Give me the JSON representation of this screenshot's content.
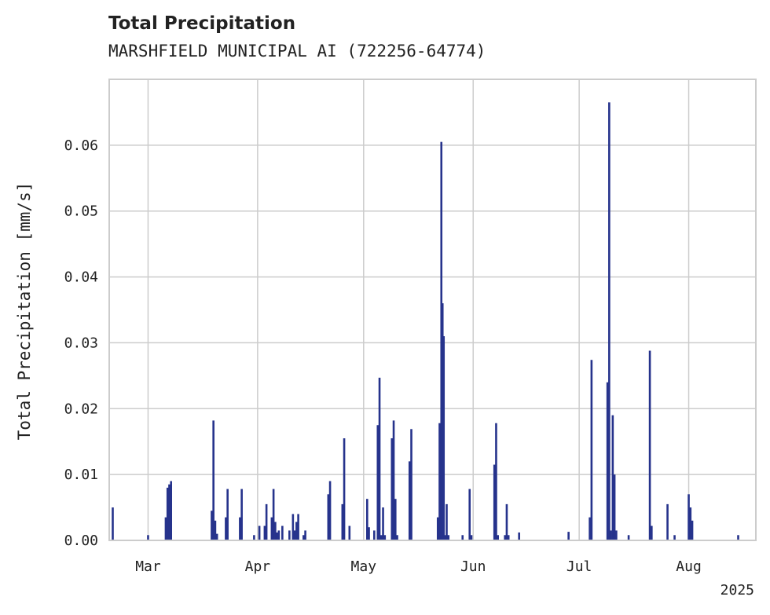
{
  "chart_data": {
    "type": "bar",
    "title": "Total Precipitation",
    "subtitle": "MARSHFIELD MUNICIPAL AI (722256-64774)",
    "ylabel": "Total Precipitation [mm/s]",
    "xlabel": "",
    "x_range": [
      "2025-02-18",
      "2025-08-20"
    ],
    "ylim": [
      0,
      0.07
    ],
    "grid": true,
    "x_ticks": [
      {
        "date": "2025-03-01",
        "label": "Mar"
      },
      {
        "date": "2025-04-01",
        "label": "Apr"
      },
      {
        "date": "2025-05-01",
        "label": "May"
      },
      {
        "date": "2025-06-01",
        "label": "Jun"
      },
      {
        "date": "2025-07-01",
        "label": "Jul"
      },
      {
        "date": "2025-08-01",
        "label": "Aug"
      }
    ],
    "x_year_label": "2025",
    "y_ticks": [
      {
        "value": 0.0,
        "label": "0.00"
      },
      {
        "value": 0.01,
        "label": "0.01"
      },
      {
        "value": 0.02,
        "label": "0.02"
      },
      {
        "value": 0.03,
        "label": "0.03"
      },
      {
        "value": 0.04,
        "label": "0.04"
      },
      {
        "value": 0.05,
        "label": "0.05"
      },
      {
        "value": 0.06,
        "label": "0.06"
      }
    ],
    "series_color": "#26338c",
    "points": [
      {
        "x": "2025-02-19",
        "y": 0.005
      },
      {
        "x": "2025-03-01",
        "y": 0.0008
      },
      {
        "x": "2025-03-06",
        "y": 0.0035
      },
      {
        "x": "2025-03-06 12:00",
        "y": 0.008
      },
      {
        "x": "2025-03-07",
        "y": 0.0085
      },
      {
        "x": "2025-03-07 12:00",
        "y": 0.009
      },
      {
        "x": "2025-03-19",
        "y": 0.0045
      },
      {
        "x": "2025-03-19 12:00",
        "y": 0.0182
      },
      {
        "x": "2025-03-20",
        "y": 0.003
      },
      {
        "x": "2025-03-20 12:00",
        "y": 0.001
      },
      {
        "x": "2025-03-23",
        "y": 0.0035
      },
      {
        "x": "2025-03-23 12:00",
        "y": 0.0078
      },
      {
        "x": "2025-03-27",
        "y": 0.0035
      },
      {
        "x": "2025-03-27 12:00",
        "y": 0.0078
      },
      {
        "x": "2025-03-31",
        "y": 0.0008
      },
      {
        "x": "2025-04-01",
        "y": 0.0
      },
      {
        "x": "2025-04-01 12:00",
        "y": 0.0022
      },
      {
        "x": "2025-04-03",
        "y": 0.0022
      },
      {
        "x": "2025-04-03 12:00",
        "y": 0.0055
      },
      {
        "x": "2025-04-05",
        "y": 0.0035
      },
      {
        "x": "2025-04-05 12:00",
        "y": 0.0078
      },
      {
        "x": "2025-04-06",
        "y": 0.0028
      },
      {
        "x": "2025-04-06 12:00",
        "y": 0.0012
      },
      {
        "x": "2025-04-07",
        "y": 0.0015
      },
      {
        "x": "2025-04-08",
        "y": 0.0022
      },
      {
        "x": "2025-04-10",
        "y": 0.0015
      },
      {
        "x": "2025-04-11",
        "y": 0.004
      },
      {
        "x": "2025-04-11 12:00",
        "y": 0.0015
      },
      {
        "x": "2025-04-12",
        "y": 0.0028
      },
      {
        "x": "2025-04-12 12:00",
        "y": 0.004
      },
      {
        "x": "2025-04-14",
        "y": 0.0008
      },
      {
        "x": "2025-04-14 12:00",
        "y": 0.0015
      },
      {
        "x": "2025-04-21",
        "y": 0.007
      },
      {
        "x": "2025-04-21 12:00",
        "y": 0.009
      },
      {
        "x": "2025-04-25",
        "y": 0.0055
      },
      {
        "x": "2025-04-25 12:00",
        "y": 0.0155
      },
      {
        "x": "2025-04-27",
        "y": 0.0022
      },
      {
        "x": "2025-05-02",
        "y": 0.0063
      },
      {
        "x": "2025-05-02 12:00",
        "y": 0.002
      },
      {
        "x": "2025-05-04",
        "y": 0.0015
      },
      {
        "x": "2025-05-05",
        "y": 0.0175
      },
      {
        "x": "2025-05-05 12:00",
        "y": 0.0247
      },
      {
        "x": "2025-05-06",
        "y": 0.0008
      },
      {
        "x": "2025-05-06 12:00",
        "y": 0.005
      },
      {
        "x": "2025-05-07",
        "y": 0.0008
      },
      {
        "x": "2025-05-09",
        "y": 0.0155
      },
      {
        "x": "2025-05-09 12:00",
        "y": 0.0182
      },
      {
        "x": "2025-05-10",
        "y": 0.0063
      },
      {
        "x": "2025-05-10 12:00",
        "y": 0.0008
      },
      {
        "x": "2025-05-14",
        "y": 0.012
      },
      {
        "x": "2025-05-14 12:00",
        "y": 0.0169
      },
      {
        "x": "2025-05-22",
        "y": 0.0035
      },
      {
        "x": "2025-05-22 12:00",
        "y": 0.0178
      },
      {
        "x": "2025-05-23",
        "y": 0.0605
      },
      {
        "x": "2025-05-23 08:00",
        "y": 0.036
      },
      {
        "x": "2025-05-23 16:00",
        "y": 0.031
      },
      {
        "x": "2025-05-24",
        "y": 0.0008
      },
      {
        "x": "2025-05-24 12:00",
        "y": 0.0055
      },
      {
        "x": "2025-05-25",
        "y": 0.0008
      },
      {
        "x": "2025-05-29",
        "y": 0.0008
      },
      {
        "x": "2025-05-31",
        "y": 0.0078
      },
      {
        "x": "2025-05-31 12:00",
        "y": 0.0008
      },
      {
        "x": "2025-06-07",
        "y": 0.0115
      },
      {
        "x": "2025-06-07 12:00",
        "y": 0.0178
      },
      {
        "x": "2025-06-08",
        "y": 0.0008
      },
      {
        "x": "2025-06-10",
        "y": 0.0008
      },
      {
        "x": "2025-06-10 12:00",
        "y": 0.0055
      },
      {
        "x": "2025-06-11",
        "y": 0.0008
      },
      {
        "x": "2025-06-14",
        "y": 0.0012
      },
      {
        "x": "2025-06-28",
        "y": 0.0013
      },
      {
        "x": "2025-07-04",
        "y": 0.0035
      },
      {
        "x": "2025-07-04 12:00",
        "y": 0.0274
      },
      {
        "x": "2025-07-09",
        "y": 0.024
      },
      {
        "x": "2025-07-09 12:00",
        "y": 0.0665
      },
      {
        "x": "2025-07-10",
        "y": 0.0015
      },
      {
        "x": "2025-07-10 12:00",
        "y": 0.019
      },
      {
        "x": "2025-07-11",
        "y": 0.01
      },
      {
        "x": "2025-07-11 12:00",
        "y": 0.0015
      },
      {
        "x": "2025-07-15",
        "y": 0.0008
      },
      {
        "x": "2025-07-21",
        "y": 0.0288
      },
      {
        "x": "2025-07-21 12:00",
        "y": 0.0022
      },
      {
        "x": "2025-07-26",
        "y": 0.0055
      },
      {
        "x": "2025-07-28",
        "y": 0.0008
      },
      {
        "x": "2025-08-01",
        "y": 0.007
      },
      {
        "x": "2025-08-01 12:00",
        "y": 0.005
      },
      {
        "x": "2025-08-02",
        "y": 0.003
      },
      {
        "x": "2025-08-15",
        "y": 0.0008
      }
    ]
  }
}
